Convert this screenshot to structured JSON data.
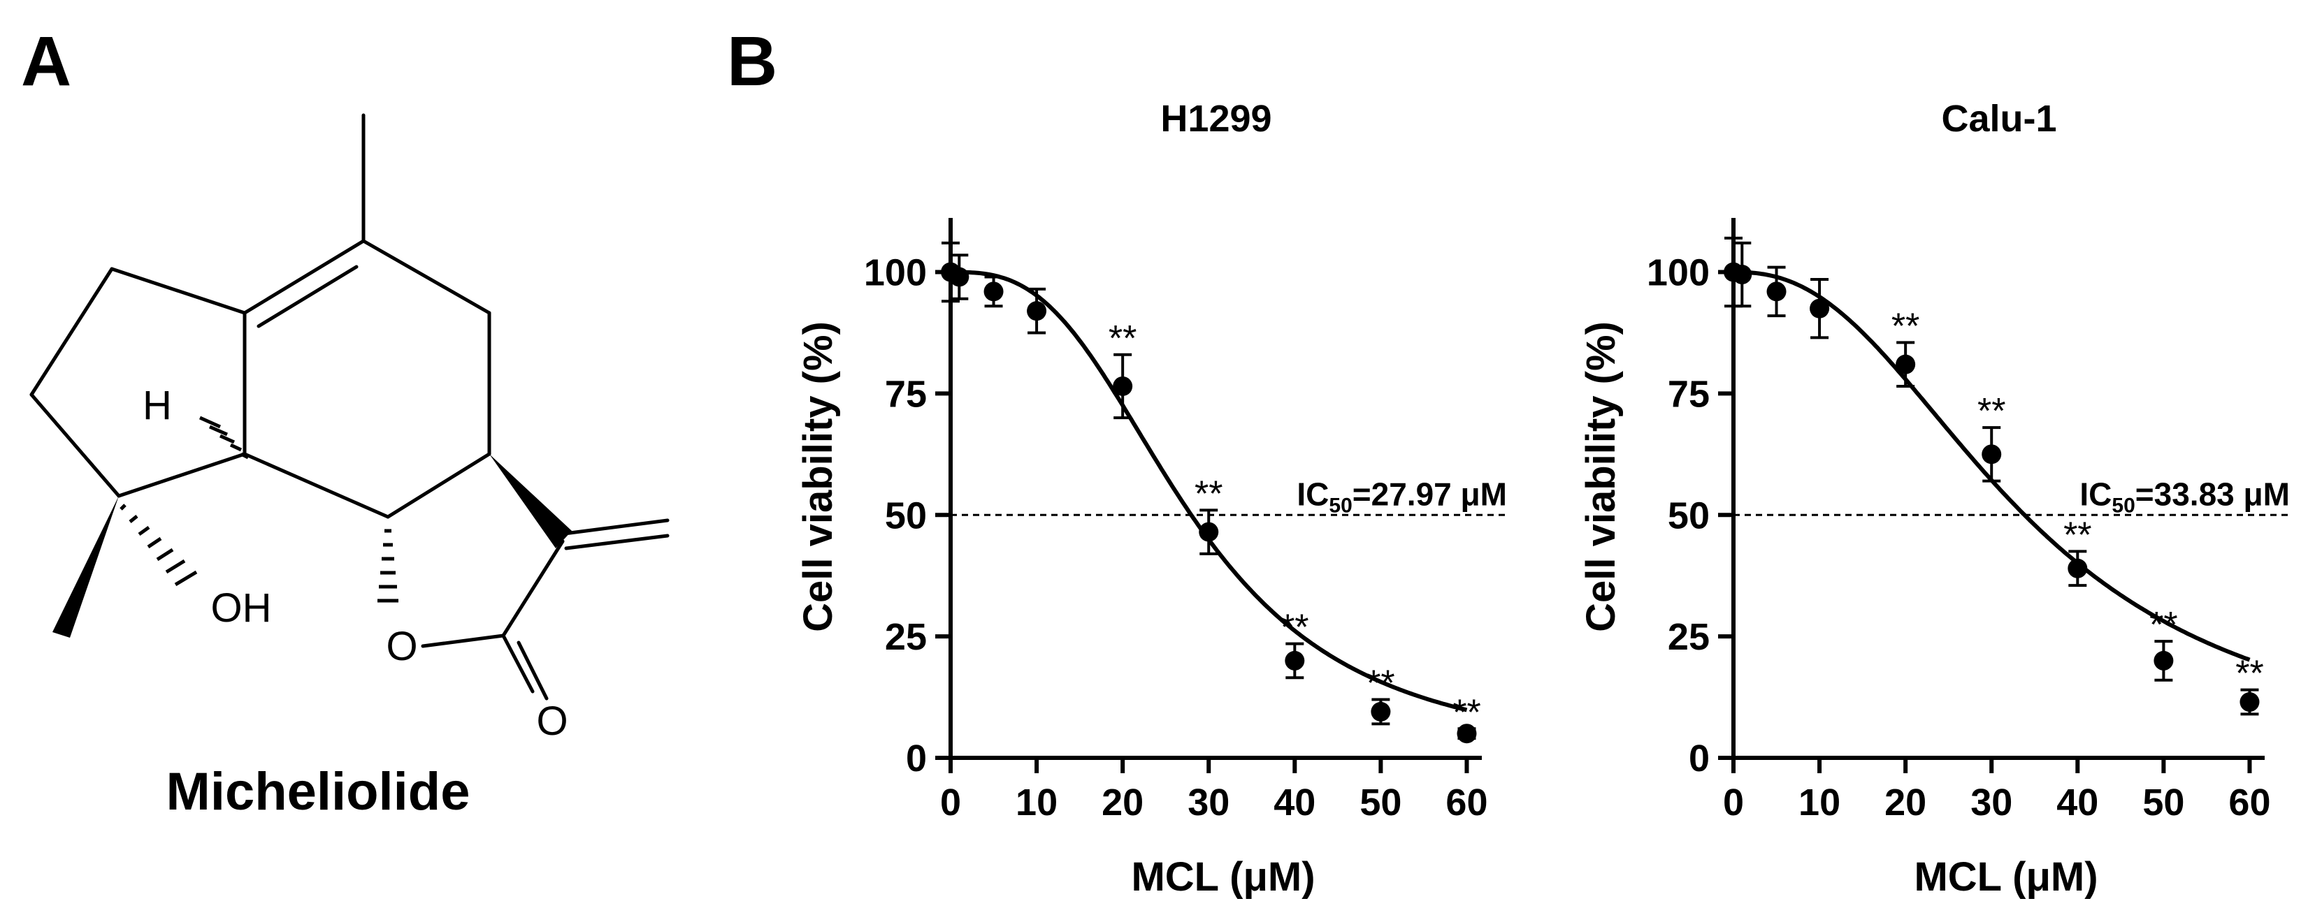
{
  "panels": {
    "a": "A",
    "b": "B"
  },
  "molecule": {
    "name": "Micheliolide",
    "labels": {
      "h": "H",
      "oh": "OH",
      "o_ring": "O",
      "o_carbonyl": "O"
    }
  },
  "chart_data": [
    {
      "type": "scatter",
      "title": "H1299",
      "xlabel": "MCL (μM)",
      "ylabel": "Cell viability (%)",
      "xlim": [
        0,
        65
      ],
      "ylim": [
        0,
        110
      ],
      "xticks": [
        0,
        10,
        20,
        30,
        40,
        50,
        60
      ],
      "yticks": [
        0,
        25,
        50,
        75,
        100
      ],
      "series": [
        {
          "x": [
            0,
            1,
            5,
            10,
            20,
            30,
            40,
            50,
            60
          ],
          "y": [
            100,
            99,
            96,
            92,
            76.5,
            46.5,
            20,
            9.5,
            5
          ],
          "err": [
            6,
            4.5,
            3,
            4.5,
            6.5,
            4.5,
            3.5,
            2.5,
            1
          ],
          "significance": [
            "",
            "",
            "",
            "",
            "**",
            "**",
            "**",
            "**",
            "**"
          ]
        }
      ],
      "fit": {
        "top": 100,
        "bottom": 0,
        "ic50": 27.97,
        "hill": 2.9
      },
      "reference_line": {
        "y": 50,
        "label_main": "IC",
        "label_sub": "50",
        "label_rest": "=27.97 μM"
      },
      "grid": false
    },
    {
      "type": "scatter",
      "title": "Calu-1",
      "xlabel": "MCL (μM)",
      "ylabel": "Cell viability (%)",
      "xlim": [
        0,
        65
      ],
      "ylim": [
        0,
        110
      ],
      "xticks": [
        0,
        10,
        20,
        30,
        40,
        50,
        60
      ],
      "yticks": [
        0,
        25,
        50,
        75,
        100
      ],
      "series": [
        {
          "x": [
            0,
            1,
            5,
            10,
            20,
            30,
            40,
            50,
            60
          ],
          "y": [
            100,
            99.5,
            96,
            92.5,
            81,
            62.5,
            39,
            20,
            11.5
          ],
          "err": [
            7,
            6.5,
            5,
            6,
            4.5,
            5.5,
            3.5,
            4,
            2.5
          ],
          "significance": [
            "",
            "",
            "",
            "",
            "**",
            "**",
            "**",
            "**",
            "**"
          ]
        }
      ],
      "fit": {
        "top": 100,
        "bottom": 0,
        "ic50": 33.83,
        "hill": 2.4
      },
      "reference_line": {
        "y": 50,
        "label_main": "IC",
        "label_sub": "50",
        "label_rest": "=33.83 μM"
      },
      "grid": false
    }
  ]
}
